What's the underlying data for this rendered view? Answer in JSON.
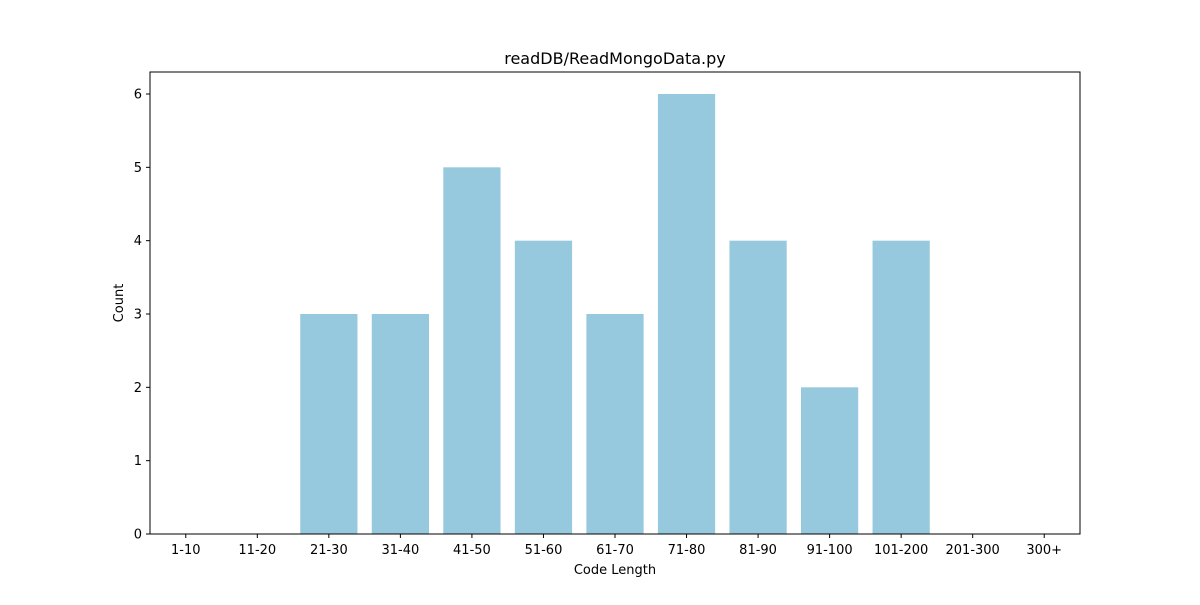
{
  "chart_data": {
    "type": "bar",
    "title": "readDB/ReadMongoData.py",
    "xlabel": "Code Length",
    "ylabel": "Count",
    "categories": [
      "1-10",
      "11-20",
      "21-30",
      "31-40",
      "41-50",
      "51-60",
      "61-70",
      "71-80",
      "81-90",
      "91-100",
      "101-200",
      "201-300",
      "300+"
    ],
    "values": [
      0,
      0,
      3,
      3,
      5,
      4,
      3,
      6,
      4,
      2,
      4,
      0,
      0
    ],
    "ylim": [
      0,
      6.3
    ],
    "yticks": [
      "0",
      "1",
      "2",
      "3",
      "4",
      "5",
      "6"
    ],
    "bar_color": "#96c9dd",
    "grid": false,
    "legend": "none"
  }
}
